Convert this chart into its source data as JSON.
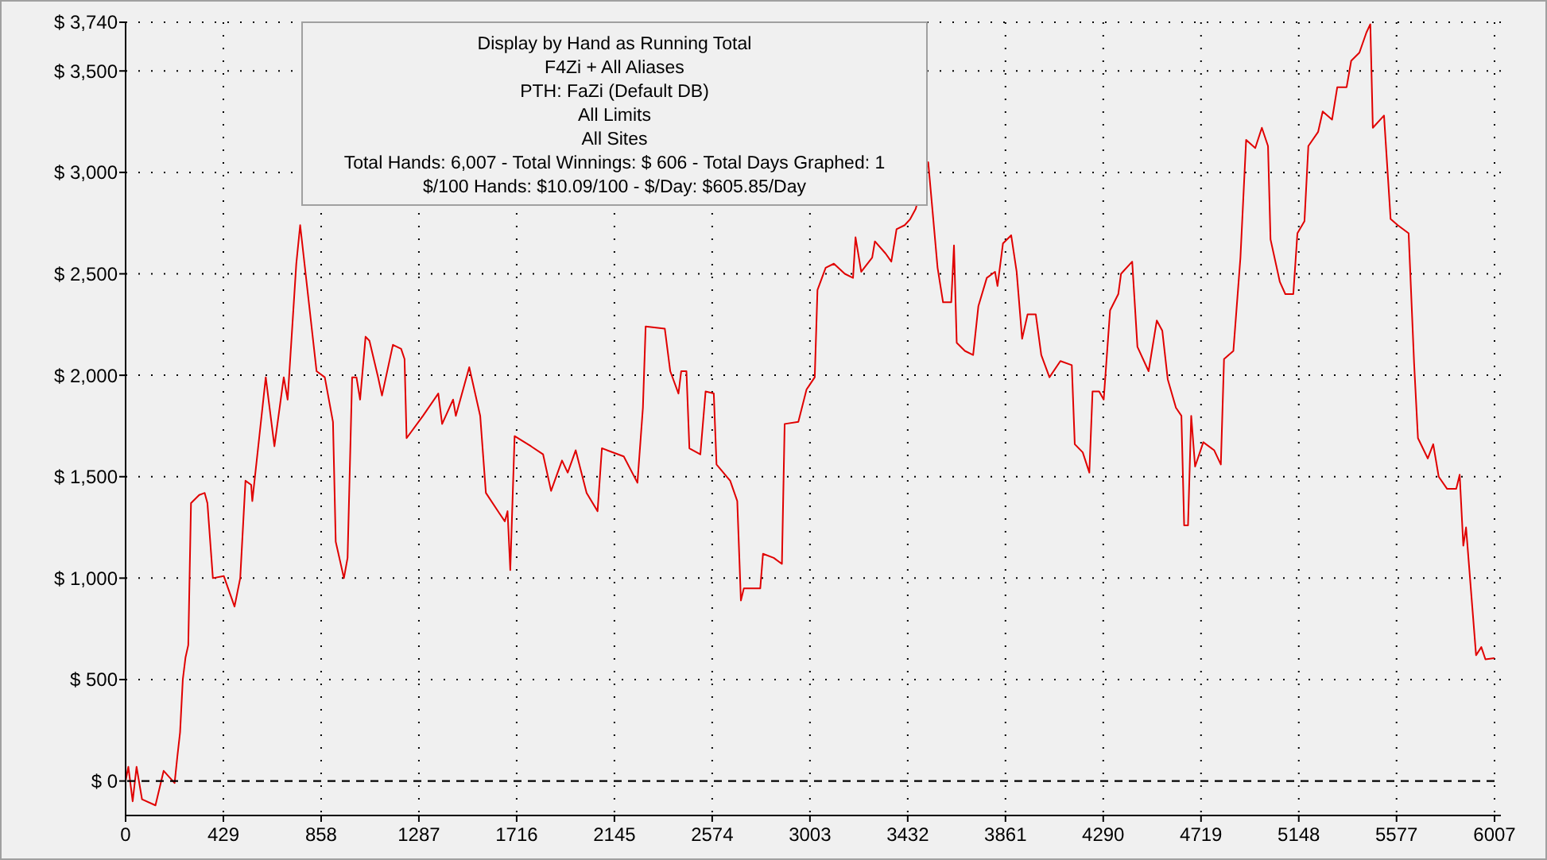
{
  "chart_data": {
    "type": "line",
    "x": [
      0,
      12,
      31,
      48,
      72,
      131,
      167,
      215,
      227,
      239,
      251,
      263,
      275,
      287,
      323,
      347,
      359,
      383,
      431,
      478,
      503,
      526,
      551,
      556,
      586,
      615,
      653,
      694,
      711,
      749,
      766,
      838,
      874,
      910,
      922,
      958,
      974,
      994,
      1013,
      1029,
      1053,
      1070,
      1108,
      1125,
      1173,
      1209,
      1224,
      1233,
      1305,
      1372,
      1389,
      1437,
      1449,
      1508,
      1556,
      1581,
      1640,
      1664,
      1676,
      1688,
      1707,
      1779,
      1832,
      1867,
      1915,
      1940,
      1975,
      2023,
      2071,
      2090,
      2186,
      2246,
      2270,
      2282,
      2366,
      2390,
      2426,
      2438,
      2461,
      2474,
      2522,
      2545,
      2581,
      2593,
      2653,
      2684,
      2700,
      2713,
      2785,
      2797,
      2844,
      2880,
      2892,
      2952,
      2988,
      3024,
      3036,
      3072,
      3108,
      3156,
      3192,
      3203,
      3228,
      3276,
      3288,
      3335,
      3360,
      3383,
      3419,
      3443,
      3467,
      3522,
      3563,
      3587,
      3623,
      3635,
      3647,
      3683,
      3719,
      3742,
      3779,
      3815,
      3826,
      3850,
      3886,
      3910,
      3934,
      3958,
      3994,
      4018,
      4054,
      4102,
      4152,
      4165,
      4200,
      4229,
      4243,
      4272,
      4292,
      4320,
      4356,
      4368,
      4417,
      4440,
      4489,
      4525,
      4549,
      4573,
      4609,
      4633,
      4645,
      4662,
      4676,
      4693,
      4729,
      4777,
      4806,
      4820,
      4861,
      4892,
      4917,
      4957,
      4986,
      5013,
      5024,
      5065,
      5089,
      5124,
      5142,
      5173,
      5190,
      5233,
      5253,
      5294,
      5317,
      5358,
      5378,
      5414,
      5445,
      5462,
      5473,
      5522,
      5551,
      5582,
      5630,
      5654,
      5671,
      5714,
      5738,
      5762,
      5799,
      5839,
      5854,
      5870,
      5882,
      5926,
      5949,
      5967,
      6007
    ],
    "series": [
      {
        "color": "#e00000",
        "values": [
          0,
          70,
          -100,
          70,
          -90,
          -120,
          50,
          -10,
          120,
          240,
          500,
          610,
          670,
          1370,
          1410,
          1420,
          1370,
          1000,
          1010,
          860,
          1000,
          1480,
          1460,
          1380,
          1690,
          1990,
          1650,
          1990,
          1880,
          2550,
          2740,
          2020,
          1990,
          1770,
          1180,
          1000,
          1100,
          1990,
          1990,
          1880,
          2190,
          2170,
          1990,
          1900,
          2150,
          2130,
          2080,
          1690,
          1800,
          1910,
          1760,
          1880,
          1800,
          2040,
          1800,
          1420,
          1320,
          1280,
          1330,
          1040,
          1700,
          1650,
          1610,
          1430,
          1580,
          1520,
          1630,
          1420,
          1330,
          1640,
          1600,
          1470,
          1840,
          2240,
          2230,
          2020,
          1910,
          2020,
          2020,
          1640,
          1610,
          1920,
          1910,
          1560,
          1480,
          1380,
          890,
          950,
          950,
          1120,
          1100,
          1070,
          1760,
          1770,
          1930,
          1990,
          2420,
          2530,
          2550,
          2500,
          2480,
          2680,
          2510,
          2580,
          2660,
          2600,
          2560,
          2720,
          2740,
          2770,
          2820,
          3050,
          2530,
          2360,
          2360,
          2640,
          2160,
          2120,
          2100,
          2340,
          2480,
          2510,
          2440,
          2650,
          2690,
          2510,
          2180,
          2300,
          2300,
          2100,
          1990,
          2070,
          2050,
          1660,
          1620,
          1520,
          1920,
          1920,
          1880,
          2320,
          2400,
          2500,
          2560,
          2140,
          2020,
          2270,
          2220,
          1980,
          1840,
          1800,
          1260,
          1260,
          1800,
          1550,
          1670,
          1630,
          1560,
          2080,
          2120,
          2580,
          3160,
          3120,
          3220,
          3130,
          2670,
          2460,
          2400,
          2400,
          2700,
          2760,
          3130,
          3200,
          3300,
          3260,
          3420,
          3420,
          3550,
          3590,
          3690,
          3730,
          3220,
          3280,
          2770,
          2740,
          2700,
          2060,
          1690,
          1590,
          1660,
          1500,
          1440,
          1440,
          1510,
          1160,
          1250,
          620,
          660,
          600,
          606
        ]
      }
    ],
    "xlim": [
      0,
      6007
    ],
    "xticks": [
      0,
      429,
      858,
      1287,
      1716,
      2145,
      2574,
      3003,
      3432,
      3861,
      4290,
      4719,
      5148,
      5577,
      6007
    ],
    "ylim": [
      -170,
      3740
    ],
    "yticks": [
      {
        "value": 0,
        "label": "$ 0"
      },
      {
        "value": 500,
        "label": "$ 500"
      },
      {
        "value": 1000,
        "label": "$ 1,000"
      },
      {
        "value": 1500,
        "label": "$ 1,500"
      },
      {
        "value": 2000,
        "label": "$ 2,000"
      },
      {
        "value": 2500,
        "label": "$ 2,500"
      },
      {
        "value": 3000,
        "label": "$ 3,000"
      },
      {
        "value": 3500,
        "label": "$ 3,500"
      },
      {
        "value": 3740,
        "label": "$ 3,740"
      }
    ],
    "grid": true,
    "line_style": "solid",
    "ref_lines": [
      {
        "axis": "y",
        "value": 0,
        "line_style": "dashed",
        "color": "#000000"
      }
    ],
    "annotations": [
      "Display by Hand as Running Total",
      "F4Zi + All Aliases",
      "PTH: FaZi (Default DB)",
      "All Limits",
      "All Sites",
      "Total Hands: 6,007 - Total Winnings: $ 606 - Total Days Graphed: 1",
      "$/100 Hands: $10.09/100 - $/Day: $605.85/Day"
    ]
  }
}
